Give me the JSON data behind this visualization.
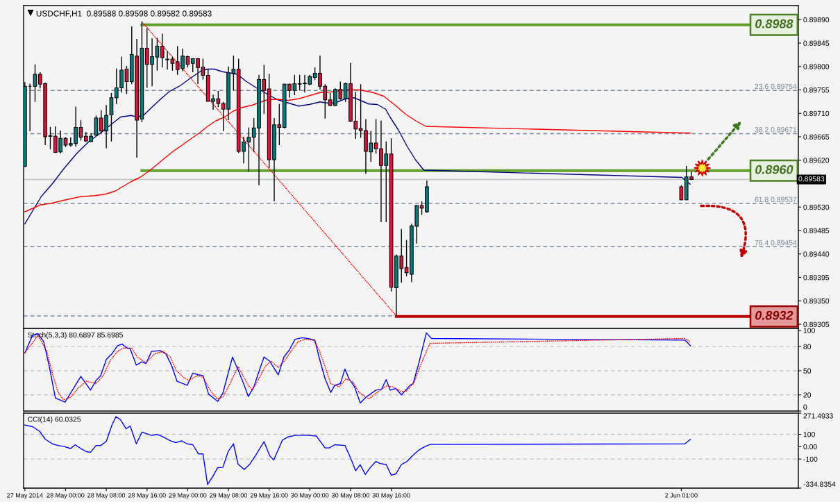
{
  "chart_data": [
    {
      "type": "candlestick",
      "title": "USDCHF,H1  0.89588 0.89598 0.89582 0.89583",
      "x": [
        "2014-05-27T16:00",
        "2014-05-27T17:00",
        "2014-05-27T18:00",
        "2014-05-27T19:00",
        "2014-05-27T20:00",
        "2014-05-27T21:00",
        "2014-05-27T22:00",
        "2014-05-27T23:00",
        "2014-05-28T00:00",
        "2014-05-28T01:00",
        "2014-05-28T02:00",
        "2014-05-28T03:00",
        "2014-05-28T04:00",
        "2014-05-28T05:00",
        "2014-05-28T06:00",
        "2014-05-28T07:00",
        "2014-05-28T08:00",
        "2014-05-28T09:00",
        "2014-05-28T10:00",
        "2014-05-28T11:00",
        "2014-05-28T12:00",
        "2014-05-28T13:00",
        "2014-05-28T14:00",
        "2014-05-28T15:00",
        "2014-05-28T16:00",
        "2014-05-28T17:00",
        "2014-05-28T18:00",
        "2014-05-28T19:00",
        "2014-05-28T20:00",
        "2014-05-28T21:00",
        "2014-05-28T22:00",
        "2014-05-28T23:00",
        "2014-05-29T00:00",
        "2014-05-29T01:00",
        "2014-05-29T02:00",
        "2014-05-29T03:00",
        "2014-05-29T04:00",
        "2014-05-29T05:00",
        "2014-05-29T06:00",
        "2014-05-29T07:00",
        "2014-05-29T08:00",
        "2014-05-29T09:00",
        "2014-05-29T10:00",
        "2014-05-29T11:00",
        "2014-05-29T12:00",
        "2014-05-29T13:00",
        "2014-05-29T14:00",
        "2014-05-29T15:00",
        "2014-05-29T16:00",
        "2014-05-29T17:00",
        "2014-05-29T18:00",
        "2014-05-29T19:00",
        "2014-05-29T20:00",
        "2014-05-29T21:00",
        "2014-05-29T22:00",
        "2014-05-29T23:00",
        "2014-05-30T00:00",
        "2014-05-30T01:00",
        "2014-05-30T02:00",
        "2014-05-30T03:00",
        "2014-05-30T04:00",
        "2014-05-30T05:00",
        "2014-05-30T06:00",
        "2014-05-30T07:00",
        "2014-05-30T08:00",
        "2014-05-30T09:00",
        "2014-05-30T10:00",
        "2014-05-30T11:00",
        "2014-05-30T12:00",
        "2014-05-30T13:00",
        "2014-05-30T14:00",
        "2014-05-30T15:00",
        "2014-05-30T16:00",
        "2014-05-30T17:00",
        "2014-05-30T18:00",
        "2014-05-30T19:00",
        "2014-05-30T20:00",
        "2014-05-30T21:00",
        "2014-05-30T22:00",
        "2014-05-30T23:00",
        "2014-06-02T01:00",
        "2014-06-02T02:00",
        "2014-06-02T03:00"
      ],
      "ohlc": [
        [
          0.89608,
          0.8977,
          0.89607,
          0.89762
        ],
        [
          0.89762,
          0.89767,
          0.89676,
          0.89762
        ],
        [
          0.89762,
          0.89804,
          0.89732,
          0.89785
        ],
        [
          0.89785,
          0.89789,
          0.89758,
          0.89766
        ],
        [
          0.89767,
          0.89769,
          0.89649,
          0.89665
        ],
        [
          0.89667,
          0.89684,
          0.89641,
          0.89666
        ],
        [
          0.89666,
          0.89685,
          0.89634,
          0.89635
        ],
        [
          0.89636,
          0.89677,
          0.89633,
          0.89662
        ],
        [
          0.89662,
          0.89664,
          0.89645,
          0.89649
        ],
        [
          0.89649,
          0.89664,
          0.89646,
          0.89652
        ],
        [
          0.89652,
          0.89723,
          0.89646,
          0.89683
        ],
        [
          0.89683,
          0.89697,
          0.89658,
          0.89664
        ],
        [
          0.89666,
          0.89674,
          0.89655,
          0.89657
        ],
        [
          0.89656,
          0.89672,
          0.89655,
          0.89666
        ],
        [
          0.89668,
          0.89706,
          0.89667,
          0.89701
        ],
        [
          0.89701,
          0.89716,
          0.89671,
          0.89676
        ],
        [
          0.89676,
          0.89726,
          0.89643,
          0.89706
        ],
        [
          0.89707,
          0.89749,
          0.89656,
          0.8974
        ],
        [
          0.8974,
          0.89796,
          0.89728,
          0.89759
        ],
        [
          0.89759,
          0.89819,
          0.8975,
          0.89793
        ],
        [
          0.89795,
          0.89801,
          0.89747,
          0.89771
        ],
        [
          0.89771,
          0.89877,
          0.89766,
          0.89823
        ],
        [
          0.8982,
          0.89853,
          0.89625,
          0.89697
        ],
        [
          0.89699,
          0.89886,
          0.89693,
          0.89835
        ],
        [
          0.89835,
          0.89874,
          0.89759,
          0.89804
        ],
        [
          0.89804,
          0.89854,
          0.89762,
          0.89819
        ],
        [
          0.89818,
          0.89855,
          0.89792,
          0.89839
        ],
        [
          0.89839,
          0.89863,
          0.89798,
          0.89817
        ],
        [
          0.89814,
          0.89829,
          0.89794,
          0.89813
        ],
        [
          0.89814,
          0.89819,
          0.89792,
          0.89806
        ],
        [
          0.89809,
          0.89839,
          0.89784,
          0.89794
        ],
        [
          0.89796,
          0.89834,
          0.89791,
          0.8982
        ],
        [
          0.89819,
          0.89821,
          0.89798,
          0.89804
        ],
        [
          0.89806,
          0.89816,
          0.89789,
          0.89815
        ],
        [
          0.89815,
          0.89816,
          0.89766,
          0.89798
        ],
        [
          0.89799,
          0.89815,
          0.89775,
          0.89783
        ],
        [
          0.89783,
          0.89795,
          0.89733,
          0.89733
        ],
        [
          0.89733,
          0.89746,
          0.89717,
          0.89738
        ],
        [
          0.89738,
          0.89753,
          0.89722,
          0.89729
        ],
        [
          0.89729,
          0.89732,
          0.89676,
          0.89718
        ],
        [
          0.89718,
          0.898,
          0.89697,
          0.89788
        ],
        [
          0.89787,
          0.89821,
          0.89754,
          0.89795
        ],
        [
          0.89795,
          0.89815,
          0.89634,
          0.89637
        ],
        [
          0.89637,
          0.89665,
          0.89614,
          0.89655
        ],
        [
          0.89655,
          0.89683,
          0.89598,
          0.89664
        ],
        [
          0.89664,
          0.89701,
          0.89636,
          0.89682
        ],
        [
          0.89682,
          0.89784,
          0.89572,
          0.89775
        ],
        [
          0.89775,
          0.89803,
          0.89709,
          0.89754
        ],
        [
          0.89757,
          0.89786,
          0.89605,
          0.89621
        ],
        [
          0.89621,
          0.89701,
          0.89541,
          0.89688
        ],
        [
          0.89688,
          0.89728,
          0.89649,
          0.89683
        ],
        [
          0.89683,
          0.89767,
          0.89681,
          0.89766
        ],
        [
          0.89766,
          0.89767,
          0.8974,
          0.89754
        ],
        [
          0.89754,
          0.89784,
          0.89745,
          0.89767
        ],
        [
          0.89767,
          0.89784,
          0.89754,
          0.89766
        ],
        [
          0.89767,
          0.89784,
          0.8975,
          0.89768
        ],
        [
          0.89766,
          0.89784,
          0.89764,
          0.89781
        ],
        [
          0.89779,
          0.89798,
          0.89774,
          0.89787
        ],
        [
          0.89787,
          0.89821,
          0.89756,
          0.89762
        ],
        [
          0.89762,
          0.89766,
          0.897,
          0.89736
        ],
        [
          0.89736,
          0.89749,
          0.89724,
          0.89725
        ],
        [
          0.89725,
          0.89758,
          0.89724,
          0.89756
        ],
        [
          0.89756,
          0.89771,
          0.89736,
          0.89738
        ],
        [
          0.89738,
          0.89769,
          0.89732,
          0.89767
        ],
        [
          0.89767,
          0.89807,
          0.89693,
          0.89695
        ],
        [
          0.89695,
          0.89751,
          0.89661,
          0.8968
        ],
        [
          0.89681,
          0.89766,
          0.89663,
          0.89677
        ],
        [
          0.89677,
          0.89699,
          0.89594,
          0.89637
        ],
        [
          0.89636,
          0.89676,
          0.89617,
          0.89653
        ],
        [
          0.89653,
          0.89699,
          0.89633,
          0.89642
        ],
        [
          0.89642,
          0.89696,
          0.89501,
          0.8961
        ],
        [
          0.8961,
          0.89656,
          0.89501,
          0.89632
        ],
        [
          0.89632,
          0.89662,
          0.89368,
          0.89376
        ],
        [
          0.89375,
          0.89439,
          0.89321,
          0.89436
        ],
        [
          0.89436,
          0.89488,
          0.89385,
          0.89412
        ],
        [
          0.89414,
          0.89467,
          0.89397,
          0.89404
        ],
        [
          0.89401,
          0.89498,
          0.89386,
          0.89494
        ],
        [
          0.89493,
          0.89534,
          0.8946,
          0.89533
        ],
        [
          0.89533,
          0.89541,
          0.89515,
          0.89528
        ],
        [
          0.89521,
          0.89581,
          0.89519,
          0.89569
        ],
        [
          0.89569,
          0.89572,
          0.89543,
          0.89544
        ],
        [
          0.89544,
          0.89609,
          0.89543,
          0.89588
        ],
        [
          0.89588,
          0.89598,
          0.89582,
          0.89583
        ]
      ],
      "colors": [
        "#008080",
        "#000000",
        "#008080",
        "#dc143c",
        "#dc143c",
        "#dc143c",
        "#dc143c",
        "#008080",
        "#dc143c",
        "#008080",
        "#008080",
        "#dc143c",
        "#dc143c",
        "#008080",
        "#008080",
        "#dc143c",
        "#008080",
        "#008080",
        "#008080",
        "#008080",
        "#dc143c",
        "#008080",
        "#dc143c",
        "#008080",
        "#dc143c",
        "#008080",
        "#008080",
        "#dc143c",
        "#dc143c",
        "#dc143c",
        "#dc143c",
        "#008080",
        "#dc143c",
        "#008080",
        "#dc143c",
        "#dc143c",
        "#dc143c",
        "#008080",
        "#dc143c",
        "#dc143c",
        "#008080",
        "#008080",
        "#dc143c",
        "#008080",
        "#008080",
        "#008080",
        "#008080",
        "#dc143c",
        "#dc143c",
        "#008080",
        "#dc143c",
        "#008080",
        "#dc143c",
        "#008080",
        "#dc143c",
        "#008080",
        "#008080",
        "#008080",
        "#dc143c",
        "#dc143c",
        "#dc143c",
        "#008080",
        "#dc143c",
        "#008080",
        "#dc143c",
        "#dc143c",
        "#dc143c",
        "#dc143c",
        "#008080",
        "#dc143c",
        "#dc143c",
        "#008080",
        "#dc143c",
        "#008080",
        "#dc143c",
        "#dc143c",
        "#008080",
        "#008080",
        "#dc143c",
        "#008080",
        "#dc143c",
        "#008080",
        "#dc143c"
      ],
      "series": [
        {
          "type": "line",
          "color": "#000080",
          "line_style": "solid",
          "x": [
            "2014-05-27T16:00",
            "2014-05-27T19:12",
            "2014-05-27T21:30",
            "2014-05-27T23:36",
            "2014-05-28T02:06",
            "2014-05-28T04:36",
            "2014-05-28T07:06",
            "2014-05-28T08:45",
            "2014-05-28T10:48",
            "2014-05-28T12:54",
            "2014-05-28T14:00",
            "2014-05-28T15:24",
            "2014-05-28T17:06",
            "2014-05-28T18:45",
            "2014-05-28T20:24",
            "2014-05-28T22:30",
            "2014-05-29T00:36",
            "2014-05-29T02:42",
            "2014-05-29T04:00",
            "2014-05-29T05:12",
            "2014-05-29T06:48",
            "2014-05-29T09:45",
            "2014-05-29T11:24",
            "2014-05-29T13:30",
            "2014-05-29T15:36",
            "2014-05-29T17:42",
            "2014-05-29T19:45",
            "2014-05-29T21:48",
            "2014-05-29T23:54",
            "2014-05-30T02:00",
            "2014-05-30T03:15",
            "2014-05-30T04:54",
            "2014-05-30T07:00",
            "2014-05-30T08:42",
            "2014-05-30T09:54",
            "2014-05-30T11:36",
            "2014-05-30T13:15",
            "2014-05-30T14:54",
            "2014-05-30T15:45",
            "2014-05-30T17:24",
            "2014-05-30T19:06",
            "2014-05-30T20:45",
            "2014-05-30T22:24",
            "2014-06-02T01:06",
            "2014-06-02T02:45"
          ],
          "values": [
            0.89498,
            0.8955,
            0.89576,
            0.89603,
            0.89632,
            0.89656,
            0.89674,
            0.89687,
            0.89703,
            0.89706,
            0.89703,
            0.89707,
            0.89723,
            0.89738,
            0.89752,
            0.89763,
            0.89778,
            0.89792,
            0.89795,
            0.89795,
            0.8979,
            0.89785,
            0.89772,
            0.89759,
            0.89747,
            0.89736,
            0.8973,
            0.89724,
            0.89727,
            0.89732,
            0.8973,
            0.8973,
            0.89738,
            0.8974,
            0.89735,
            0.89728,
            0.89727,
            0.89718,
            0.89703,
            0.89678,
            0.89647,
            0.89621,
            0.89601,
            0.89587,
            0.89574
          ]
        },
        {
          "type": "line",
          "color": "#ff0000",
          "line_style": "solid",
          "x": [
            "2014-05-27T16:00",
            "2014-05-27T19:00",
            "2014-05-27T21:30",
            "2014-05-27T23:36",
            "2014-05-28T02:54",
            "2014-05-28T05:48",
            "2014-05-28T07:54",
            "2014-05-28T09:48",
            "2014-05-28T10:48",
            "2014-05-28T12:54",
            "2014-05-28T14:36",
            "2014-05-28T16:15",
            "2014-05-28T17:54",
            "2014-05-28T19:36",
            "2014-05-28T21:15",
            "2014-05-28T22:54",
            "2014-05-29T00:36",
            "2014-05-29T02:15",
            "2014-05-29T03:54",
            "2014-05-29T05:36",
            "2014-05-29T07:15",
            "2014-05-29T08:54",
            "2014-05-29T10:36",
            "2014-05-29T12:45",
            "2014-05-29T14:24",
            "2014-05-29T15:36",
            "2014-05-29T17:42",
            "2014-05-29T19:45",
            "2014-05-29T21:48",
            "2014-05-29T23:54",
            "2014-05-30T02:00",
            "2014-05-30T04:06",
            "2014-05-30T05:45",
            "2014-05-30T07:24",
            "2014-05-30T09:54",
            "2014-05-30T12:24",
            "2014-05-30T14:30",
            "2014-05-30T16:36",
            "2014-05-30T18:45",
            "2014-05-30T20:45",
            "2014-05-30T22:48",
            "2014-06-02T02:45"
          ],
          "values": [
            0.89521,
            0.89534,
            0.89538,
            0.89543,
            0.8955,
            0.89552,
            0.89555,
            0.89561,
            0.89567,
            0.89579,
            0.89587,
            0.89598,
            0.89611,
            0.89625,
            0.89638,
            0.89649,
            0.89661,
            0.89672,
            0.89685,
            0.89696,
            0.89703,
            0.89714,
            0.89721,
            0.89726,
            0.89732,
            0.89736,
            0.89737,
            0.89735,
            0.89738,
            0.89744,
            0.8975,
            0.89751,
            0.89754,
            0.89755,
            0.89755,
            0.8975,
            0.89743,
            0.89727,
            0.89709,
            0.89696,
            0.89685,
            0.89672
          ]
        },
        {
          "type": "line",
          "color": "#ff0000",
          "line_style": "dotted",
          "x": [
            "2014-05-28T15:00",
            "2014-05-30T17:00"
          ],
          "values": [
            0.89886,
            0.89321
          ]
        },
        {
          "type": "line",
          "color": "#5f9f2a",
          "line_style": "solid",
          "x": [
            "2014-05-28T15:00",
            "2014-06-02T14:30"
          ],
          "values": [
            0.8988,
            0.8988
          ]
        },
        {
          "type": "line",
          "color": "#5f9f2a",
          "line_style": "solid",
          "x": [
            "2014-05-28T15:00",
            "2014-06-02T14:30"
          ],
          "values": [
            0.896,
            0.896
          ]
        },
        {
          "type": "line",
          "color": "#c00000",
          "line_style": "solid",
          "x": [
            "2014-05-30T17:00",
            "2014-06-02T14:30"
          ],
          "values": [
            0.8932,
            0.8932
          ]
        }
      ],
      "annotations": [
        {
          "text": "0.8988",
          "x": "2014-06-02T14:30",
          "y": 0.8988
        },
        {
          "text": "0.8960",
          "x": "2014-06-02T14:30",
          "y": 0.896
        },
        {
          "text": "0.8932",
          "x": "2014-06-02T14:30",
          "y": 0.8932
        }
      ],
      "ref_lines": [
        {
          "axis": "y",
          "value": 0.89754,
          "label": "23.6 0.89754",
          "color": "#778899",
          "line_style": "dashed"
        },
        {
          "axis": "y",
          "value": 0.89671,
          "label": "38.2 0.89671",
          "color": "#778899",
          "line_style": "dashed"
        },
        {
          "axis": "y",
          "value": 0.89537,
          "label": "61.8 0.89537",
          "color": "#778899",
          "line_style": "dashed"
        },
        {
          "axis": "y",
          "value": 0.89454,
          "label": "76.4 0.89454",
          "color": "#778899",
          "line_style": "dashed"
        },
        {
          "axis": "y",
          "value": 0.89321,
          "color": "#778899",
          "line_style": "dashed"
        },
        {
          "axis": "y",
          "value": 0.89583,
          "label": "0.89583",
          "color": "#c0c0c0",
          "line_style": "solid"
        }
      ],
      "xlim": [
        "2014-05-27T15:45",
        "2014-06-03T00:00"
      ],
      "ylim": [
        0.89297,
        0.89917
      ],
      "yticks": [
        {
          "value": 0.8989,
          "label": "0.89890"
        },
        0.89845,
        {
          "value": 0.898,
          "label": "0.89800"
        },
        0.89755,
        {
          "value": 0.8971,
          "label": "0.89710"
        },
        0.89665,
        {
          "value": 0.8962,
          "label": "0.89620"
        },
        {
          "value": 0.8953,
          "label": "0.89530"
        },
        0.89485,
        {
          "value": 0.8944,
          "label": "0.89440"
        },
        0.89395,
        {
          "value": 0.8935,
          "label": "0.89350"
        },
        0.89305
      ],
      "tick_labels": "y",
      "marker": "none"
    },
    {
      "type": "line",
      "title": "Stoch(5,3,3) 80.6897 85.6985",
      "series": [
        {
          "color": "#0000ff",
          "line_style": "solid",
          "x": [
            "2014-05-27T16:00",
            "2014-05-27T17:30",
            "2014-05-27T18:36",
            "2014-05-27T19:42",
            "2014-05-27T20:48",
            "2014-05-27T22:00",
            "2014-05-27T23:54",
            "2014-05-28T03:00",
            "2014-05-28T04:54",
            "2014-05-28T06:00",
            "2014-05-28T06:54",
            "2014-05-28T08:00",
            "2014-05-28T09:06",
            "2014-05-28T10:12",
            "2014-05-28T11:06",
            "2014-05-28T11:54",
            "2014-05-28T12:42",
            "2014-05-28T13:54",
            "2014-05-28T15:00",
            "2014-05-28T15:48",
            "2014-05-28T16:54",
            "2014-05-28T18:36",
            "2014-05-28T19:42",
            "2014-05-28T20:48",
            "2014-05-28T21:54",
            "2014-05-28T23:54",
            "2014-05-29T01:00",
            "2014-05-29T02:06",
            "2014-05-29T03:00",
            "2014-05-29T04:06",
            "2014-05-29T05:54",
            "2014-05-29T06:54",
            "2014-05-29T08:48",
            "2014-05-29T09:54",
            "2014-05-29T11:06",
            "2014-05-29T11:54",
            "2014-05-29T13:00",
            "2014-05-29T14:06",
            "2014-05-29T15:00",
            "2014-05-29T16:06",
            "2014-05-29T17:48",
            "2014-05-29T18:54",
            "2014-05-29T20:00",
            "2014-05-29T21:06",
            "2014-05-29T22:30",
            "2014-05-29T23:36",
            "2014-05-30T01:00",
            "2014-05-30T01:48",
            "2014-05-30T03:00",
            "2014-05-30T04:06",
            "2014-05-30T04:54",
            "2014-05-30T06:00",
            "2014-05-30T06:54",
            "2014-05-30T07:42",
            "2014-05-30T08:48",
            "2014-05-30T09:54",
            "2014-05-30T11:00",
            "2014-05-30T13:00",
            "2014-05-30T14:06",
            "2014-05-30T15:00",
            "2014-05-30T15:48",
            "2014-05-30T16:54",
            "2014-05-30T18:00",
            "2014-05-30T19:42",
            "2014-05-30T20:18",
            "2014-05-30T21:24",
            "2014-05-30T22:54",
            "2014-05-30T23:54",
            "2014-06-02T01:42",
            "2014-06-02T02:48"
          ],
          "values": [
            72,
            94,
            96,
            86,
            55,
            16,
            11,
            43,
            26,
            38,
            44,
            64,
            71,
            81,
            83,
            79,
            77,
            57,
            61,
            59,
            74,
            75,
            71,
            57,
            37,
            32,
            47,
            45,
            44,
            21,
            12,
            22,
            67,
            51,
            32,
            18,
            30,
            51,
            67,
            62,
            45,
            67,
            76,
            89,
            91,
            90,
            88,
            67,
            40,
            23,
            32,
            34,
            52,
            40,
            30,
            10,
            17,
            26,
            27,
            39,
            26,
            28,
            20,
            32,
            34,
            59,
            97,
            90,
            88,
            81
          ]
        },
        {
          "color": "#ff0000",
          "line_style": "dotted",
          "x": [
            "2014-05-27T16:00",
            "2014-05-27T18:36",
            "2014-05-27T20:18",
            "2014-05-27T21:24",
            "2014-05-27T22:30",
            "2014-05-27T23:36",
            "2014-05-28T01:00",
            "2014-05-28T02:24",
            "2014-05-28T04:06",
            "2014-05-28T06:00",
            "2014-05-28T07:24",
            "2014-05-28T08:48",
            "2014-05-28T10:12",
            "2014-05-28T11:18",
            "2014-05-28T13:00",
            "2014-05-28T14:06",
            "2014-05-28T15:48",
            "2014-05-28T17:30",
            "2014-05-28T19:12",
            "2014-05-28T20:36",
            "2014-05-28T21:42",
            "2014-05-28T23:06",
            "2014-05-29T00:12",
            "2014-05-29T01:54",
            "2014-05-29T03:00",
            "2014-05-29T04:24",
            "2014-05-29T05:48",
            "2014-05-29T06:54",
            "2014-05-29T08:18",
            "2014-05-29T09:54",
            "2014-05-29T11:54",
            "2014-05-29T12:42",
            "2014-05-29T13:48",
            "2014-05-29T15:12",
            "2014-05-29T16:24",
            "2014-05-29T17:48",
            "2014-05-29T19:06",
            "2014-05-29T20:18",
            "2014-05-29T21:42",
            "2014-05-29T23:00",
            "2014-05-30T00:42",
            "2014-05-30T01:48",
            "2014-05-30T03:00",
            "2014-05-30T04:06",
            "2014-05-30T05:48",
            "2014-05-30T07:06",
            "2014-05-30T08:30",
            "2014-05-30T09:42",
            "2014-05-30T11:36",
            "2014-05-30T13:00",
            "2014-05-30T15:00",
            "2014-05-30T16:24",
            "2014-05-30T18:00",
            "2014-05-30T19:06",
            "2014-05-30T20:30",
            "2014-05-30T21:54",
            "2014-05-30T23:36",
            "2014-06-02T01:42",
            "2014-06-02T02:42"
          ],
          "values": [
            72,
            94,
            74,
            47,
            24,
            14,
            17,
            28,
            37,
            34,
            44,
            63,
            74,
            78,
            78,
            67,
            60,
            71,
            74,
            67,
            51,
            42,
            38,
            44,
            42,
            26,
            15,
            17,
            34,
            55,
            32,
            26,
            38,
            55,
            62,
            54,
            63,
            74,
            86,
            89,
            88,
            76,
            55,
            34,
            30,
            40,
            36,
            23,
            15,
            22,
            31,
            30,
            24,
            25,
            36,
            59,
            84,
            90,
            86
          ]
        }
      ],
      "ref_lines": [
        {
          "axis": "y",
          "value": 80,
          "color": "#c0c0c0",
          "line_style": "dashed"
        },
        {
          "axis": "y",
          "value": 50,
          "color": "#c0c0c0",
          "line_style": "dashed"
        },
        {
          "axis": "y",
          "value": 20,
          "color": "#c0c0c0",
          "line_style": "dashed"
        }
      ],
      "xlim": [
        "2014-05-27T15:45",
        "2014-06-03T00:00"
      ],
      "ylim": [
        0,
        102.5
      ],
      "yticks": [
        0,
        20,
        50,
        80,
        100
      ],
      "tick_labels": "y",
      "marker": "none"
    },
    {
      "type": "line",
      "title": "CCI(14) 60.0325",
      "series": [
        {
          "color": "#0000ff",
          "line_style": "solid",
          "x": [
            "2014-05-27T16:00",
            "2014-05-27T17:30",
            "2014-05-27T18:54",
            "2014-05-27T20:00",
            "2014-05-27T21:24",
            "2014-05-27T22:30",
            "2014-05-27T23:36",
            "2014-05-28T01:00",
            "2014-05-28T01:54",
            "2014-05-28T03:00",
            "2014-05-28T04:06",
            "2014-05-28T04:54",
            "2014-05-28T06:00",
            "2014-05-28T06:54",
            "2014-05-28T08:00",
            "2014-05-28T09:06",
            "2014-05-28T09:54",
            "2014-05-28T10:48",
            "2014-05-28T11:54",
            "2014-05-28T12:42",
            "2014-05-28T13:54",
            "2014-05-28T15:00",
            "2014-05-28T15:48",
            "2014-05-28T16:54",
            "2014-05-28T18:00",
            "2014-05-28T19:12",
            "2014-05-28T20:36",
            "2014-05-28T21:42",
            "2014-05-28T22:48",
            "2014-05-28T23:54",
            "2014-05-29T01:00",
            "2014-05-29T02:06",
            "2014-05-29T03:00",
            "2014-05-29T03:54",
            "2014-05-29T04:54",
            "2014-05-29T05:54",
            "2014-05-29T06:54",
            "2014-05-29T08:00",
            "2014-05-29T09:00",
            "2014-05-29T09:54",
            "2014-05-29T11:06",
            "2014-05-29T12:12",
            "2014-05-29T13:18",
            "2014-05-29T15:00",
            "2014-05-29T16:06",
            "2014-05-29T16:54",
            "2014-05-29T18:36",
            "2014-05-29T19:42",
            "2014-05-29T21:06",
            "2014-05-29T23:00",
            "2014-05-30T01:18",
            "2014-05-30T03:00",
            "2014-05-30T03:48",
            "2014-05-30T04:54",
            "2014-05-30T06:54",
            "2014-05-30T08:00",
            "2014-05-30T09:00",
            "2014-05-30T09:54",
            "2014-05-30T10:54",
            "2014-05-30T11:54",
            "2014-05-30T13:00",
            "2014-05-30T13:48",
            "2014-05-30T15:00",
            "2014-05-30T16:00",
            "2014-05-30T16:54",
            "2014-05-30T18:00",
            "2014-05-30T19:06",
            "2014-05-30T20:18",
            "2014-05-30T21:24",
            "2014-05-30T22:30",
            "2014-05-30T23:36",
            "2014-06-02T01:42",
            "2014-06-02T02:48"
          ],
          "values": [
            175,
            162,
            124,
            61,
            23,
            10,
            3,
            -15,
            16,
            -15,
            -40,
            -45,
            10,
            10,
            43,
            175,
            243,
            218,
            145,
            167,
            23,
            117,
            107,
            91,
            99,
            79,
            48,
            33,
            48,
            23,
            16,
            -58,
            -58,
            -306,
            -243,
            -169,
            -167,
            -35,
            23,
            -141,
            -184,
            -141,
            -73,
            41,
            -73,
            -108,
            53,
            79,
            91,
            94,
            86,
            -10,
            -10,
            16,
            10,
            -91,
            -194,
            -146,
            -225,
            -167,
            -119,
            -136,
            -144,
            -230,
            -220,
            -144,
            -119,
            -68,
            -28,
            -2,
            18,
            23,
            60
          ]
        }
      ],
      "ref_lines": [
        {
          "axis": "y",
          "value": 100,
          "color": "#c0c0c0",
          "line_style": "dashed"
        },
        {
          "axis": "y",
          "value": -100,
          "color": "#c0c0c0",
          "line_style": "dashed"
        }
      ],
      "xlim": [
        "2014-05-27T15:45",
        "2014-06-03T00:00"
      ],
      "ylim": [
        -334.8354,
        271.4933
      ],
      "yticks": [
        {
          "value": -334.8354,
          "label": "-334.8354"
        },
        -100,
        {
          "value": 0,
          "label": "0.00"
        },
        100,
        {
          "value": 271.4933,
          "label": "271.4933"
        }
      ],
      "xticks": [
        {
          "value": "2014-05-27T16:00",
          "label": "27 May 2014"
        },
        {
          "value": "2014-05-28T00:00",
          "label": "28 May 00:00"
        },
        {
          "value": "2014-05-28T08:00",
          "label": "28 May 08:00"
        },
        {
          "value": "2014-05-28T16:00",
          "label": "28 May 16:00"
        },
        {
          "value": "2014-05-29T00:00",
          "label": "29 May 00:00"
        },
        {
          "value": "2014-05-29T08:00",
          "label": "29 May 08:00"
        },
        {
          "value": "2014-05-29T16:00",
          "label": "29 May 16:00"
        },
        {
          "value": "2014-05-30T00:00",
          "label": "30 May 00:00"
        },
        {
          "value": "2014-05-30T08:00",
          "label": "30 May 08:00"
        },
        {
          "value": "2014-05-30T16:00",
          "label": "30 May 16:00"
        },
        {
          "value": "2014-06-02T01:00",
          "label": "2 Jun 01:00"
        }
      ],
      "marker": "none"
    }
  ]
}
